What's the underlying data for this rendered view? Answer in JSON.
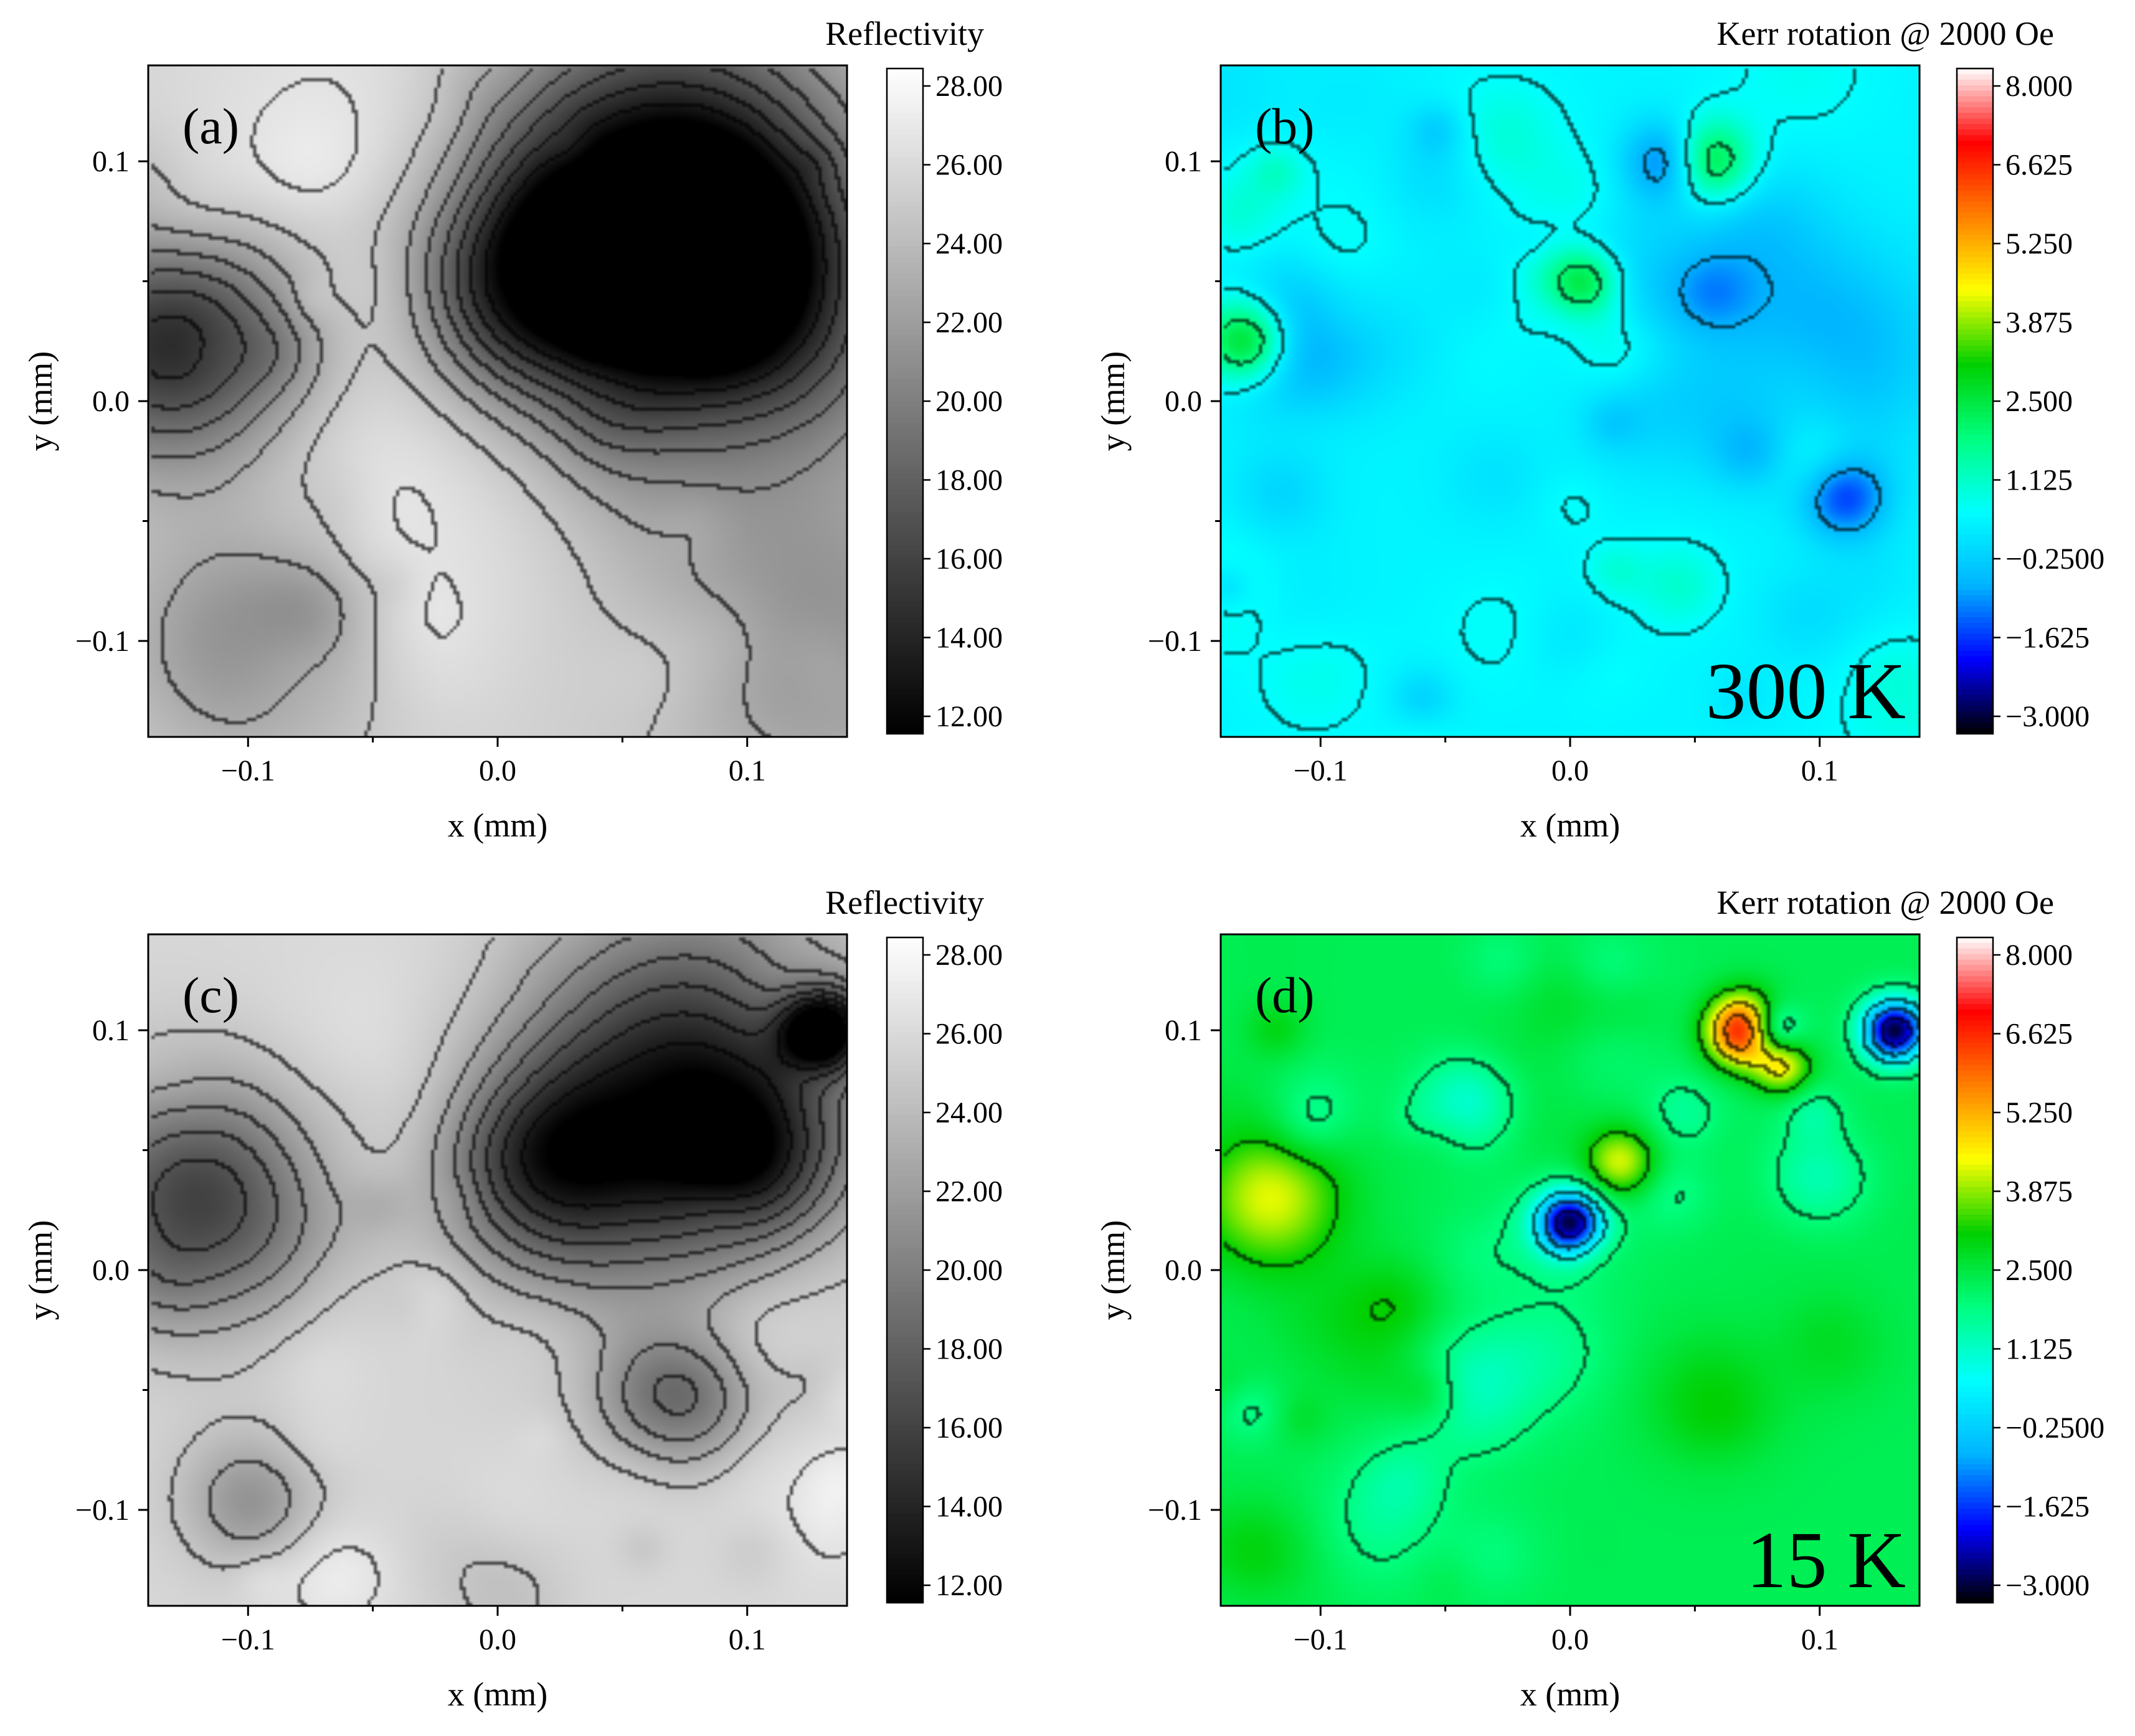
{
  "chart_data": [
    {
      "panel_id": "a",
      "type": "heatmap",
      "panel_label": "(a)",
      "quantity": "Reflectivity",
      "colorbar_title": "Reflectivity",
      "colormap": "grayscale",
      "colormap_colors": [
        "#000000",
        "#ffffff"
      ],
      "colorbar_ticks": [
        "28.00",
        "26.00",
        "24.00",
        "22.00",
        "20.00",
        "18.00",
        "16.00",
        "14.00",
        "12.00"
      ],
      "zlim": [
        11.7,
        28.4
      ],
      "xlabel": "x (mm)",
      "ylabel": "y (mm)",
      "xlim": [
        -0.14,
        0.14
      ],
      "ylim": [
        -0.14,
        0.14
      ],
      "xticks": [
        "−0.1",
        "0.0",
        "0.1"
      ],
      "yticks": [
        "0.1",
        "0.0",
        "−0.1"
      ],
      "contour_lines": true,
      "background": 25.5,
      "features": [
        {
          "x": -0.13,
          "y": 0.025,
          "value": 14.0,
          "r": 0.035
        },
        {
          "x": 0.065,
          "y": 0.09,
          "value": 13.5,
          "r": 0.05
        },
        {
          "x": 0.09,
          "y": 0.05,
          "value": 16.0,
          "r": 0.035
        },
        {
          "x": 0.01,
          "y": 0.05,
          "value": 16.5,
          "r": 0.03
        },
        {
          "x": 0.06,
          "y": 0.035,
          "value": 19.0,
          "r": 0.06
        },
        {
          "x": -0.035,
          "y": 0.08,
          "value": 28.0,
          "r": 0.06
        },
        {
          "x": -0.01,
          "y": -0.03,
          "value": 27.5,
          "r": 0.05
        },
        {
          "x": -0.1,
          "y": -0.1,
          "value": 21.0,
          "r": 0.035
        },
        {
          "x": 0.13,
          "y": -0.1,
          "value": 21.5,
          "r": 0.05
        }
      ]
    },
    {
      "panel_id": "b",
      "type": "heatmap",
      "panel_label": "(b)",
      "temperature_label": "300 K",
      "quantity": "Kerr rotation @ 2000 Oe",
      "colorbar_title": "Kerr rotation @ 2000 Oe",
      "colormap": "rainbow",
      "colormap_colors": [
        "#000000",
        "#0000ff",
        "#00b4ff",
        "#00ffff",
        "#00ff80",
        "#00d000",
        "#ffff00",
        "#ff8000",
        "#ff0000",
        "#ffffff"
      ],
      "colorbar_ticks": [
        "8.000",
        "6.625",
        "5.250",
        "3.875",
        "2.500",
        "1.125",
        "−0.2500",
        "−1.625",
        "−3.000"
      ],
      "zlim": [
        -3.3,
        8.3
      ],
      "xlabel": "x (mm)",
      "ylabel": "y (mm)",
      "xlim": [
        -0.14,
        0.14
      ],
      "ylim": [
        -0.14,
        0.14
      ],
      "xticks": [
        "−0.1",
        "0.0",
        "0.1"
      ],
      "yticks": [
        "0.1",
        "0.0",
        "−0.1"
      ],
      "contour_lines": true,
      "background": 0.4,
      "features": [
        {
          "x": -0.13,
          "y": 0.025,
          "value": 3.2,
          "r": 0.012
        },
        {
          "x": 0.055,
          "y": 0.1,
          "value": 3.0,
          "r": 0.012
        },
        {
          "x": 0.005,
          "y": 0.05,
          "value": 2.5,
          "r": 0.01
        },
        {
          "x": 0.04,
          "y": 0.1,
          "value": -1.6,
          "r": 0.012
        },
        {
          "x": 0.11,
          "y": -0.04,
          "value": -1.5,
          "r": 0.012
        },
        {
          "x": 0.1,
          "y": 0.02,
          "value": -1.0,
          "r": 0.03
        },
        {
          "x": -0.11,
          "y": 0.015,
          "value": -1.0,
          "r": 0.02
        }
      ]
    },
    {
      "panel_id": "c",
      "type": "heatmap",
      "panel_label": "(c)",
      "quantity": "Reflectivity",
      "colorbar_title": "Reflectivity",
      "colormap": "grayscale",
      "colormap_colors": [
        "#000000",
        "#ffffff"
      ],
      "colorbar_ticks": [
        "28.00",
        "26.00",
        "24.00",
        "22.00",
        "20.00",
        "18.00",
        "16.00",
        "14.00",
        "12.00"
      ],
      "zlim": [
        11.7,
        28.4
      ],
      "xlabel": "x (mm)",
      "ylabel": "y (mm)",
      "xticks": [
        "−0.1",
        "0.0",
        "0.1"
      ],
      "yticks": [
        "0.1",
        "0.0",
        "−0.1"
      ],
      "xlim": [
        -0.14,
        0.14
      ],
      "ylim": [
        -0.14,
        0.14
      ],
      "contour_lines": true,
      "background": 25.8,
      "features": [
        {
          "x": -0.12,
          "y": 0.03,
          "value": 16.0,
          "r": 0.035
        },
        {
          "x": 0.08,
          "y": 0.09,
          "value": 17.0,
          "r": 0.045
        },
        {
          "x": 0.02,
          "y": 0.045,
          "value": 17.5,
          "r": 0.03
        },
        {
          "x": 0.1,
          "y": 0.045,
          "value": 18.5,
          "r": 0.025
        },
        {
          "x": 0.055,
          "y": 0.045,
          "value": 21.0,
          "r": 0.05
        },
        {
          "x": 0.13,
          "y": 0.1,
          "value": 12.5,
          "r": 0.012
        },
        {
          "x": 0.07,
          "y": -0.055,
          "value": 18.5,
          "r": 0.02
        },
        {
          "x": -0.03,
          "y": 0.07,
          "value": 27.5,
          "r": 0.04
        },
        {
          "x": -0.1,
          "y": -0.095,
          "value": 22.0,
          "r": 0.02
        }
      ]
    },
    {
      "panel_id": "d",
      "type": "heatmap",
      "panel_label": "(d)",
      "temperature_label": "15 K",
      "quantity": "Kerr rotation @ 2000 Oe",
      "colorbar_title": "Kerr rotation @ 2000 Oe",
      "colormap": "rainbow",
      "colormap_colors": [
        "#000000",
        "#0000ff",
        "#00b4ff",
        "#00ffff",
        "#00ff80",
        "#00d000",
        "#ffff00",
        "#ff8000",
        "#ff0000",
        "#ffffff"
      ],
      "colorbar_ticks": [
        "8.000",
        "6.625",
        "5.250",
        "3.875",
        "2.500",
        "1.125",
        "−0.2500",
        "−1.625",
        "−3.000"
      ],
      "zlim": [
        -3.3,
        8.3
      ],
      "xlabel": "x (mm)",
      "ylabel": "y (mm)",
      "xlim": [
        -0.14,
        0.14
      ],
      "ylim": [
        -0.14,
        0.14
      ],
      "xticks": [
        "−0.1",
        "0.0",
        "0.1"
      ],
      "yticks": [
        "0.1",
        "0.0",
        "−0.1"
      ],
      "contour_lines": true,
      "background": 2.3,
      "features": [
        {
          "x": 0.07,
          "y": 0.1,
          "value": 7.5,
          "r": 0.01
        },
        {
          "x": 0.08,
          "y": 0.1,
          "value": -0.5,
          "r": 0.008
        },
        {
          "x": 0.13,
          "y": 0.1,
          "value": -3.0,
          "r": 0.009
        },
        {
          "x": 0.0,
          "y": 0.02,
          "value": -2.0,
          "r": 0.009
        },
        {
          "x": -0.12,
          "y": 0.03,
          "value": 4.3,
          "r": 0.02
        },
        {
          "x": 0.02,
          "y": 0.045,
          "value": 4.3,
          "r": 0.01
        },
        {
          "x": 0.085,
          "y": 0.085,
          "value": 4.5,
          "r": 0.008
        },
        {
          "x": -0.04,
          "y": 0.07,
          "value": 0.8,
          "r": 0.015
        },
        {
          "x": 0.1,
          "y": 0.04,
          "value": 1.0,
          "r": 0.015
        }
      ]
    }
  ]
}
